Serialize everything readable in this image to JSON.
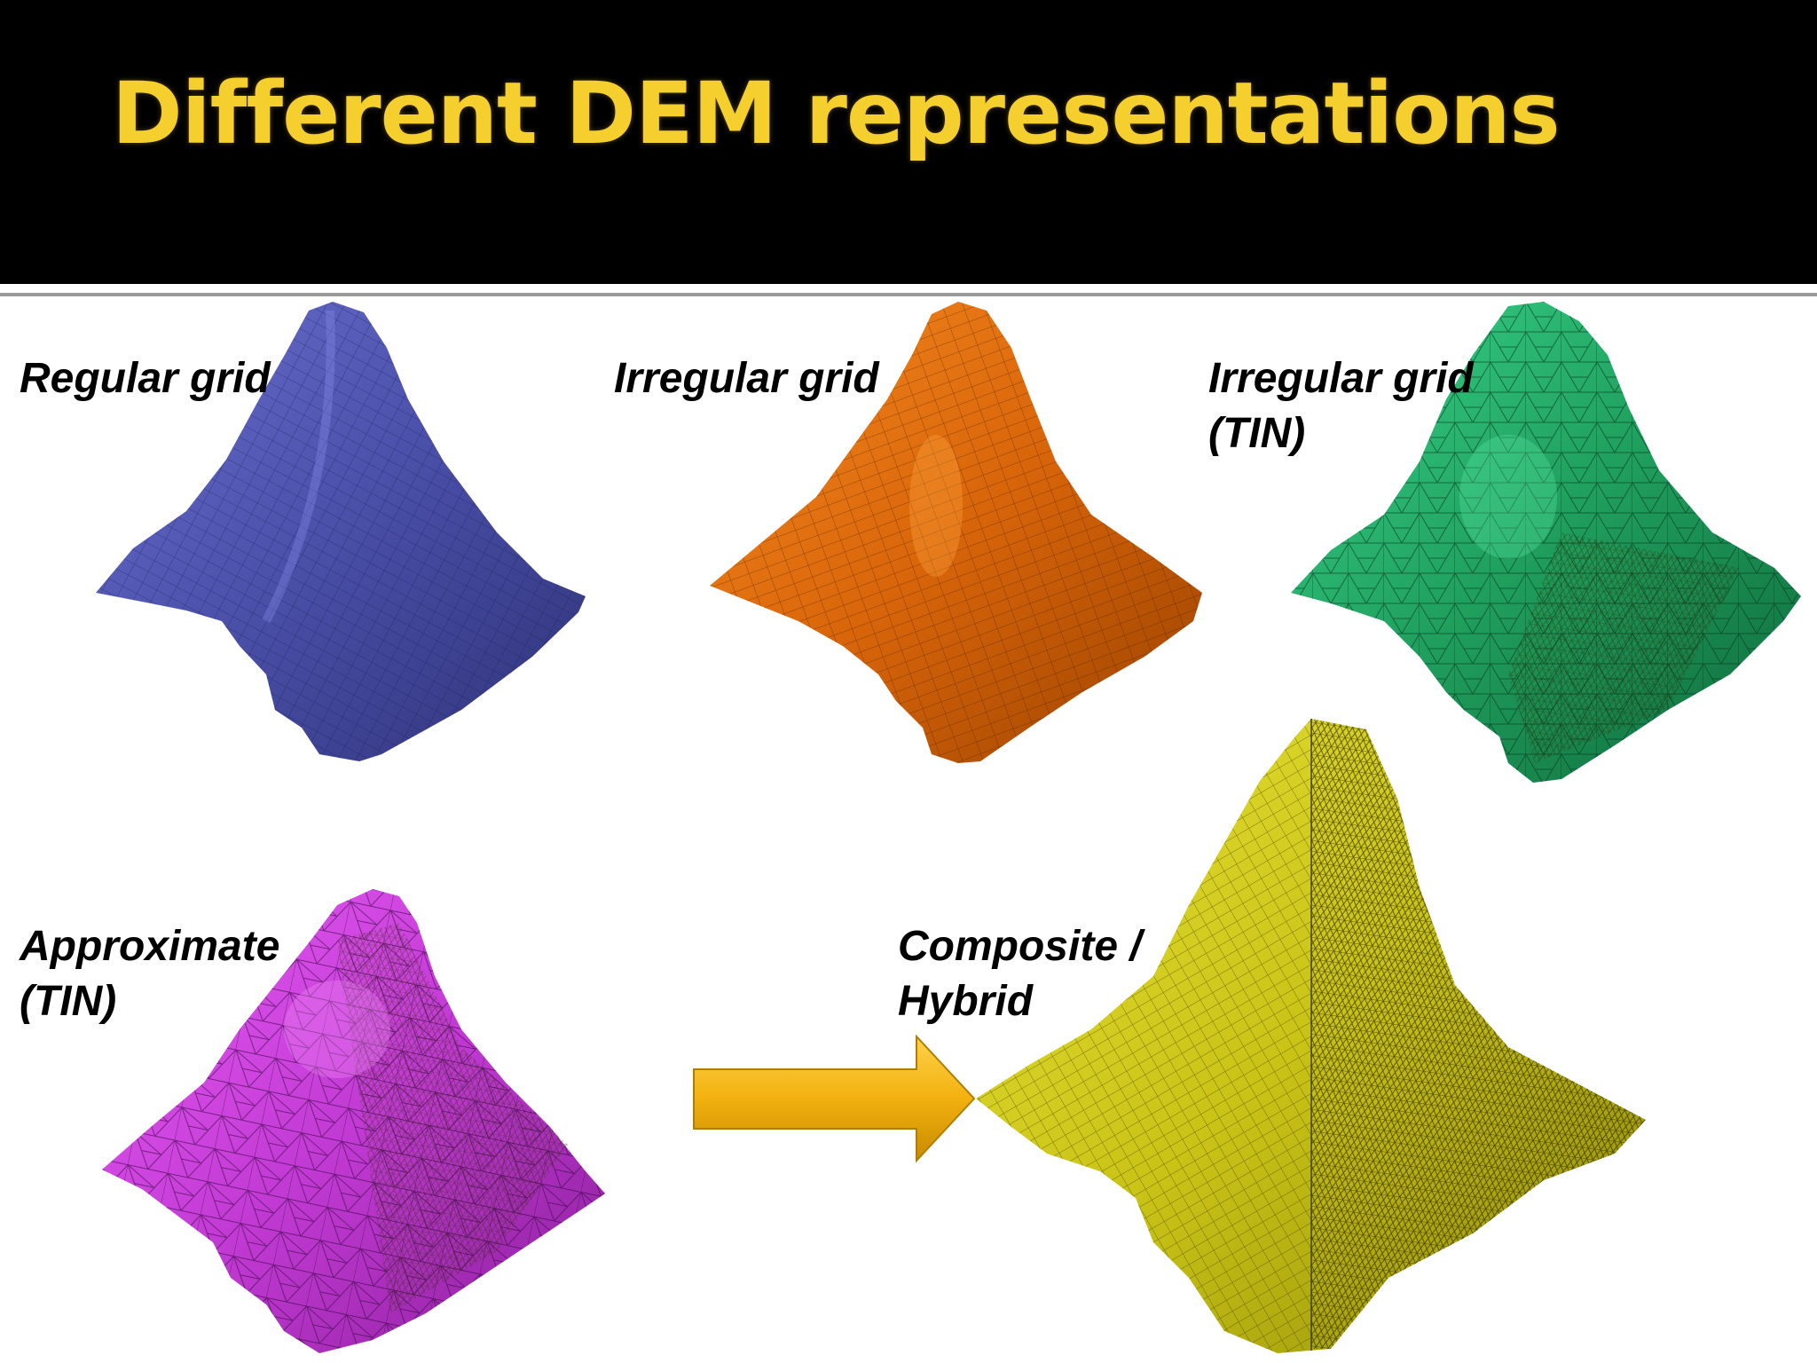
{
  "slide": {
    "title": "Different DEM representations",
    "title_color": "#f5cf2d"
  },
  "panels": [
    {
      "id": "regular-grid",
      "lines": [
        "Regular grid"
      ],
      "mesh": "regular",
      "color": "#4a4fa8"
    },
    {
      "id": "irregular-grid",
      "lines": [
        "Irregular grid"
      ],
      "mesh": "irregular",
      "color": "#d9650a"
    },
    {
      "id": "irregular-grid-tin",
      "lines": [
        "Irregular grid",
        "(TIN)"
      ],
      "mesh": "tin",
      "color": "#1f9e5c"
    },
    {
      "id": "approximate-tin",
      "lines": [
        "Approximate",
        "(TIN)"
      ],
      "mesh": "tin",
      "color": "#c23ad4"
    },
    {
      "id": "composite-hybrid",
      "lines": [
        "Composite /",
        "Hybrid"
      ],
      "mesh": "hybrid",
      "color": "#c9c316"
    }
  ],
  "arrow": {
    "color": "#f2b10f",
    "points_to": "composite-hybrid"
  }
}
